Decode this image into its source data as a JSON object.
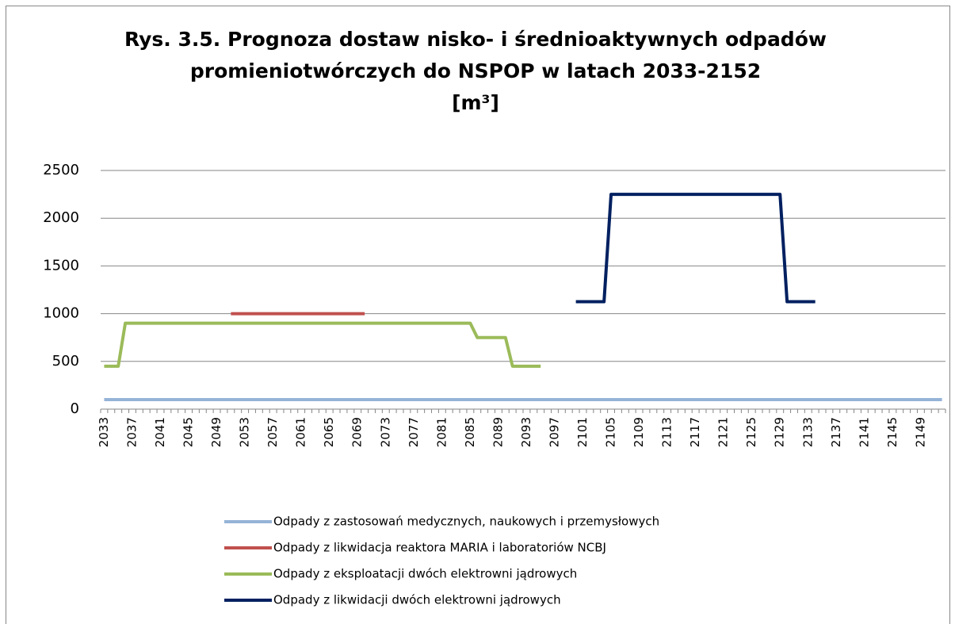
{
  "chart_data": {
    "type": "line",
    "title": [
      "Rys. 3.5. Prognoza dostaw nisko- i średnioaktywnych odpadów",
      "promieniotwórczych do NSPOP w latach 2033-2152",
      "[m³]"
    ],
    "categories": [
      "2033",
      null,
      null,
      null,
      "2037",
      null,
      null,
      null,
      "2041",
      null,
      null,
      null,
      "2045",
      null,
      null,
      null,
      "2049",
      null,
      null,
      null,
      "2053",
      null,
      null,
      null,
      "2057",
      null,
      null,
      null,
      "2061",
      null,
      null,
      null,
      "2065",
      null,
      null,
      null,
      "2069",
      null,
      null,
      null,
      "2073",
      null,
      null,
      null,
      "2077",
      null,
      null,
      null,
      "2081",
      null,
      null,
      null,
      "2085",
      null,
      null,
      null,
      "2089",
      null,
      null,
      null,
      "2093",
      null,
      null,
      null,
      "2097",
      null,
      null,
      null,
      "2101",
      null,
      null,
      null,
      "2105",
      null,
      null,
      null,
      "2109",
      null,
      null,
      null,
      "2113",
      null,
      null,
      null,
      "2117",
      null,
      null,
      null,
      "2121",
      null,
      null,
      null,
      "2125",
      null,
      null,
      null,
      "2129",
      null,
      null,
      null,
      "2133",
      null,
      null,
      null,
      "2137",
      null,
      null,
      null,
      "2141",
      null,
      null,
      null,
      "2145",
      null,
      null,
      null,
      "2149",
      null,
      null,
      null
    ],
    "ylim": [
      0,
      2500
    ],
    "yticks": [
      0,
      500,
      1000,
      1500,
      2000,
      2500
    ],
    "grid": true,
    "legend": "bottom",
    "series": [
      {
        "name": "Odpady z zastosowań medycznych, naukowych i przemysłowych",
        "color": "#95b3d7",
        "values": [
          100,
          100,
          100,
          100,
          100,
          100,
          100,
          100,
          100,
          100,
          100,
          100,
          100,
          100,
          100,
          100,
          100,
          100,
          100,
          100,
          100,
          100,
          100,
          100,
          100,
          100,
          100,
          100,
          100,
          100,
          100,
          100,
          100,
          100,
          100,
          100,
          100,
          100,
          100,
          100,
          100,
          100,
          100,
          100,
          100,
          100,
          100,
          100,
          100,
          100,
          100,
          100,
          100,
          100,
          100,
          100,
          100,
          100,
          100,
          100,
          100,
          100,
          100,
          100,
          100,
          100,
          100,
          100,
          100,
          100,
          100,
          100,
          100,
          100,
          100,
          100,
          100,
          100,
          100,
          100,
          100,
          100,
          100,
          100,
          100,
          100,
          100,
          100,
          100,
          100,
          100,
          100,
          100,
          100,
          100,
          100,
          100,
          100,
          100,
          100,
          100,
          100,
          100,
          100,
          100,
          100,
          100,
          100,
          100,
          100,
          100,
          100,
          100,
          100,
          100,
          100,
          100,
          100,
          100,
          100
        ]
      },
      {
        "name": "Odpady z likwidacja reaktora MARIA i laboratoriów NCBJ",
        "color": "#c0504d",
        "values": [
          null,
          null,
          null,
          null,
          null,
          null,
          null,
          null,
          null,
          null,
          null,
          null,
          null,
          null,
          null,
          null,
          null,
          null,
          1000,
          1000,
          1000,
          1000,
          1000,
          1000,
          1000,
          1000,
          1000,
          1000,
          1000,
          1000,
          1000,
          1000,
          1000,
          1000,
          1000,
          1000,
          1000,
          1000,
          null,
          null,
          null,
          null,
          null,
          null,
          null,
          null,
          null,
          null,
          null,
          null,
          null,
          null,
          null,
          null,
          null,
          null,
          null,
          null,
          null,
          null,
          null,
          null,
          null,
          null,
          null,
          null,
          null,
          null,
          null,
          null,
          null,
          null,
          null,
          null,
          null,
          null,
          null,
          null,
          null,
          null,
          null,
          null,
          null,
          null,
          null,
          null,
          null,
          null,
          null,
          null,
          null,
          null,
          null,
          null,
          null,
          null,
          null,
          null,
          null,
          null,
          null,
          null,
          null,
          null,
          null,
          null,
          null,
          null,
          null,
          null,
          null,
          null,
          null,
          null,
          null,
          null,
          null,
          null,
          null,
          null
        ]
      },
      {
        "name": "Odpady z eksploatacji dwóch elektrowni jądrowych",
        "color": "#9bbb59",
        "values": [
          450,
          450,
          450,
          900,
          900,
          900,
          900,
          900,
          900,
          900,
          900,
          900,
          900,
          900,
          900,
          900,
          900,
          900,
          900,
          900,
          900,
          900,
          900,
          900,
          900,
          900,
          900,
          900,
          900,
          900,
          900,
          900,
          900,
          900,
          900,
          900,
          900,
          900,
          900,
          900,
          900,
          900,
          900,
          900,
          900,
          900,
          900,
          900,
          900,
          900,
          900,
          900,
          900,
          750,
          750,
          750,
          750,
          750,
          450,
          450,
          450,
          450,
          450,
          null,
          null,
          null,
          null,
          null,
          null,
          null,
          null,
          null,
          null,
          null,
          null,
          null,
          null,
          null,
          null,
          null,
          null,
          null,
          null,
          null,
          null,
          null,
          null,
          null,
          null,
          null,
          null,
          null,
          null,
          null,
          null,
          null,
          null,
          null,
          null,
          null,
          null,
          null,
          null,
          null,
          null,
          null,
          null,
          null,
          null,
          null,
          null,
          null,
          null,
          null,
          null,
          null,
          null,
          null,
          null,
          null
        ]
      },
      {
        "name": "Odpady z likwidacji dwóch elektrowni jądrowych",
        "color": "#002060",
        "values": [
          null,
          null,
          null,
          null,
          null,
          null,
          null,
          null,
          null,
          null,
          null,
          null,
          null,
          null,
          null,
          null,
          null,
          null,
          null,
          null,
          null,
          null,
          null,
          null,
          null,
          null,
          null,
          null,
          null,
          null,
          null,
          null,
          null,
          null,
          null,
          null,
          null,
          null,
          null,
          null,
          null,
          null,
          null,
          null,
          null,
          null,
          null,
          null,
          null,
          null,
          null,
          null,
          null,
          null,
          null,
          null,
          null,
          null,
          null,
          null,
          null,
          null,
          null,
          null,
          null,
          null,
          null,
          1125,
          1125,
          1125,
          1125,
          1125,
          2250,
          2250,
          2250,
          2250,
          2250,
          2250,
          2250,
          2250,
          2250,
          2250,
          2250,
          2250,
          2250,
          2250,
          2250,
          2250,
          2250,
          2250,
          2250,
          2250,
          2250,
          2250,
          2250,
          2250,
          2250,
          1125,
          1125,
          1125,
          1125,
          1125,
          null,
          null,
          null,
          null,
          null,
          null,
          null,
          null,
          null,
          null,
          null,
          null,
          null,
          null,
          null,
          null,
          null,
          null
        ]
      }
    ]
  }
}
